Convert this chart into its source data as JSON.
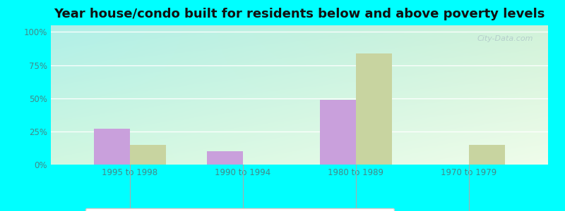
{
  "title": "Year house/condo built for residents below and above poverty levels",
  "categories": [
    "1995 to 1998",
    "1990 to 1994",
    "1980 to 1989",
    "1970 to 1979"
  ],
  "below_poverty": [
    27,
    10,
    49,
    0
  ],
  "above_poverty": [
    15,
    0,
    84,
    15
  ],
  "below_color": "#c9a0dc",
  "above_color": "#c8d4a0",
  "yticks": [
    0,
    25,
    50,
    75,
    100
  ],
  "ytick_labels": [
    "0%",
    "25%",
    "50%",
    "75%",
    "100%"
  ],
  "ylim": [
    0,
    105
  ],
  "bar_width": 0.32,
  "bg_top_left": "#b0f0e8",
  "bg_bottom_right": "#e8f8e0",
  "outer_bg": "#00ffff",
  "title_fontsize": 13,
  "legend_fontsize": 9,
  "tick_fontsize": 8.5,
  "axis_color": "#448888",
  "watermark": "City-Data.com"
}
